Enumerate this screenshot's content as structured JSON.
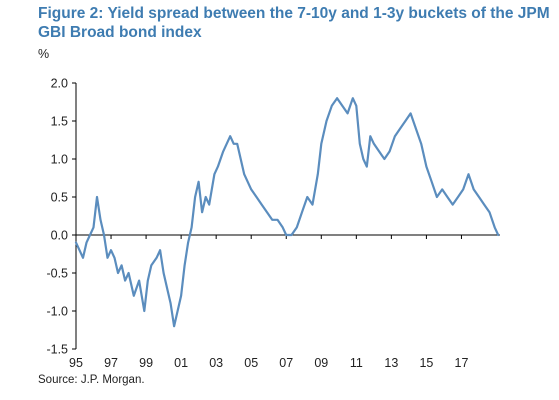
{
  "figure": {
    "title_line1": "Figure 2: Yield spread between the 7-10y and 1-3y buckets of the JPM",
    "title_line2": "GBI Broad bond index",
    "source": "Source: J.P. Morgan.",
    "line_color": "#5B8DBE",
    "title_color": "#3E7CB1"
  },
  "chart_data": {
    "type": "line",
    "title": "Figure 2: Yield spread between the 7-10y and 1-3y buckets of the JPM GBI Broad bond index",
    "ylabel": "%",
    "xlabel": "",
    "ylim": [
      -1.5,
      2.0
    ],
    "yticks": [
      2.0,
      1.5,
      1.0,
      0.5,
      0.0,
      -0.5,
      -1.0,
      -1.5
    ],
    "ytick_labels": [
      "2.0",
      "1.5",
      "1.0",
      "0.5",
      "0.0",
      "-0.5",
      "-1.0",
      "-1.5"
    ],
    "xlim": [
      1995,
      2019.2
    ],
    "xticks": [
      1995,
      1997,
      1999,
      2001,
      2003,
      2005,
      2007,
      2009,
      2011,
      2013,
      2015,
      2017
    ],
    "xtick_labels": [
      "95",
      "97",
      "99",
      "01",
      "03",
      "05",
      "07",
      "09",
      "11",
      "13",
      "15",
      "17"
    ],
    "grid": false,
    "legend": "none",
    "series": [
      {
        "x": [
          1995.0,
          1995.2,
          1995.4,
          1995.6,
          1995.8,
          1996.0,
          1996.2,
          1996.4,
          1996.6,
          1996.8,
          1997.0,
          1997.2,
          1997.4,
          1997.6,
          1997.8,
          1998.0,
          1998.3,
          1998.6,
          1998.9,
          1999.1,
          1999.3,
          1999.6,
          1999.8,
          2000.0,
          2000.2,
          2000.4,
          2000.6,
          2000.8,
          2001.0,
          2001.2,
          2001.4,
          2001.6,
          2001.8,
          2002.0,
          2002.2,
          2002.4,
          2002.6,
          2002.9,
          2003.1,
          2003.4,
          2003.6,
          2003.8,
          2004.0,
          2004.2,
          2004.4,
          2004.6,
          2004.8,
          2005.0,
          2005.3,
          2005.6,
          2005.9,
          2006.2,
          2006.5,
          2006.8,
          2007.0,
          2007.3,
          2007.6,
          2007.9,
          2008.2,
          2008.5,
          2008.8,
          2009.0,
          2009.3,
          2009.6,
          2009.9,
          2010.2,
          2010.5,
          2010.8,
          2011.0,
          2011.2,
          2011.4,
          2011.6,
          2011.8,
          2012.0,
          2012.3,
          2012.6,
          2012.9,
          2013.2,
          2013.5,
          2013.8,
          2014.1,
          2014.4,
          2014.7,
          2015.0,
          2015.3,
          2015.6,
          2015.9,
          2016.2,
          2016.5,
          2016.8,
          2017.1,
          2017.4,
          2017.7,
          2018.0,
          2018.3,
          2018.6,
          2018.9,
          2019.1
        ],
        "values": [
          -0.1,
          -0.2,
          -0.3,
          -0.1,
          0.0,
          0.1,
          0.5,
          0.2,
          0.0,
          -0.3,
          -0.2,
          -0.3,
          -0.5,
          -0.4,
          -0.6,
          -0.5,
          -0.8,
          -0.6,
          -1.0,
          -0.6,
          -0.4,
          -0.3,
          -0.2,
          -0.5,
          -0.7,
          -0.9,
          -1.2,
          -1.0,
          -0.8,
          -0.4,
          -0.1,
          0.1,
          0.5,
          0.7,
          0.3,
          0.5,
          0.4,
          0.8,
          0.9,
          1.1,
          1.2,
          1.3,
          1.2,
          1.2,
          1.0,
          0.8,
          0.7,
          0.6,
          0.5,
          0.4,
          0.3,
          0.2,
          0.2,
          0.1,
          0.0,
          0.0,
          0.1,
          0.3,
          0.5,
          0.4,
          0.8,
          1.2,
          1.5,
          1.7,
          1.8,
          1.7,
          1.6,
          1.8,
          1.7,
          1.2,
          1.0,
          0.9,
          1.3,
          1.2,
          1.1,
          1.0,
          1.1,
          1.3,
          1.4,
          1.5,
          1.6,
          1.4,
          1.2,
          0.9,
          0.7,
          0.5,
          0.6,
          0.5,
          0.4,
          0.5,
          0.6,
          0.8,
          0.6,
          0.5,
          0.4,
          0.3,
          0.1,
          0.0
        ]
      }
    ]
  }
}
